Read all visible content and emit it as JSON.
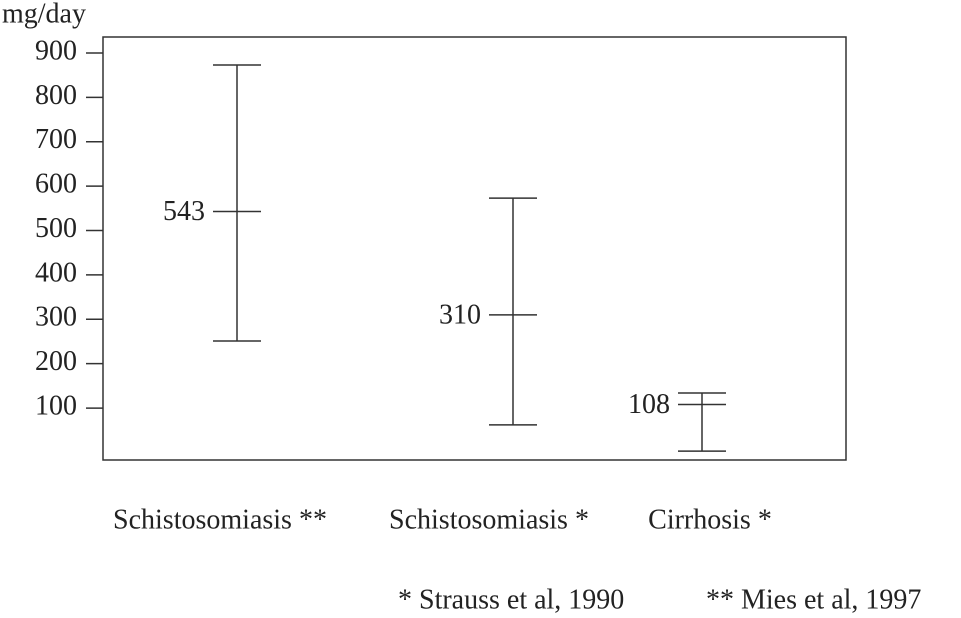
{
  "chart_data": {
    "type": "range",
    "y_label": "mg/day",
    "categories": [
      "Schistosomiasis **",
      "Schistosomiasis *",
      "Cirrhosis *"
    ],
    "values": [
      543,
      310,
      108
    ],
    "lows": [
      251,
      62,
      3
    ],
    "highs": [
      873,
      573,
      134
    ],
    "ylim": [
      -17,
      936
    ],
    "yticks": [
      100,
      200,
      300,
      400,
      500,
      600,
      700,
      800,
      900
    ],
    "notes": [
      "* Strauss et al, 1990",
      "** Mies et al, 1997"
    ]
  }
}
